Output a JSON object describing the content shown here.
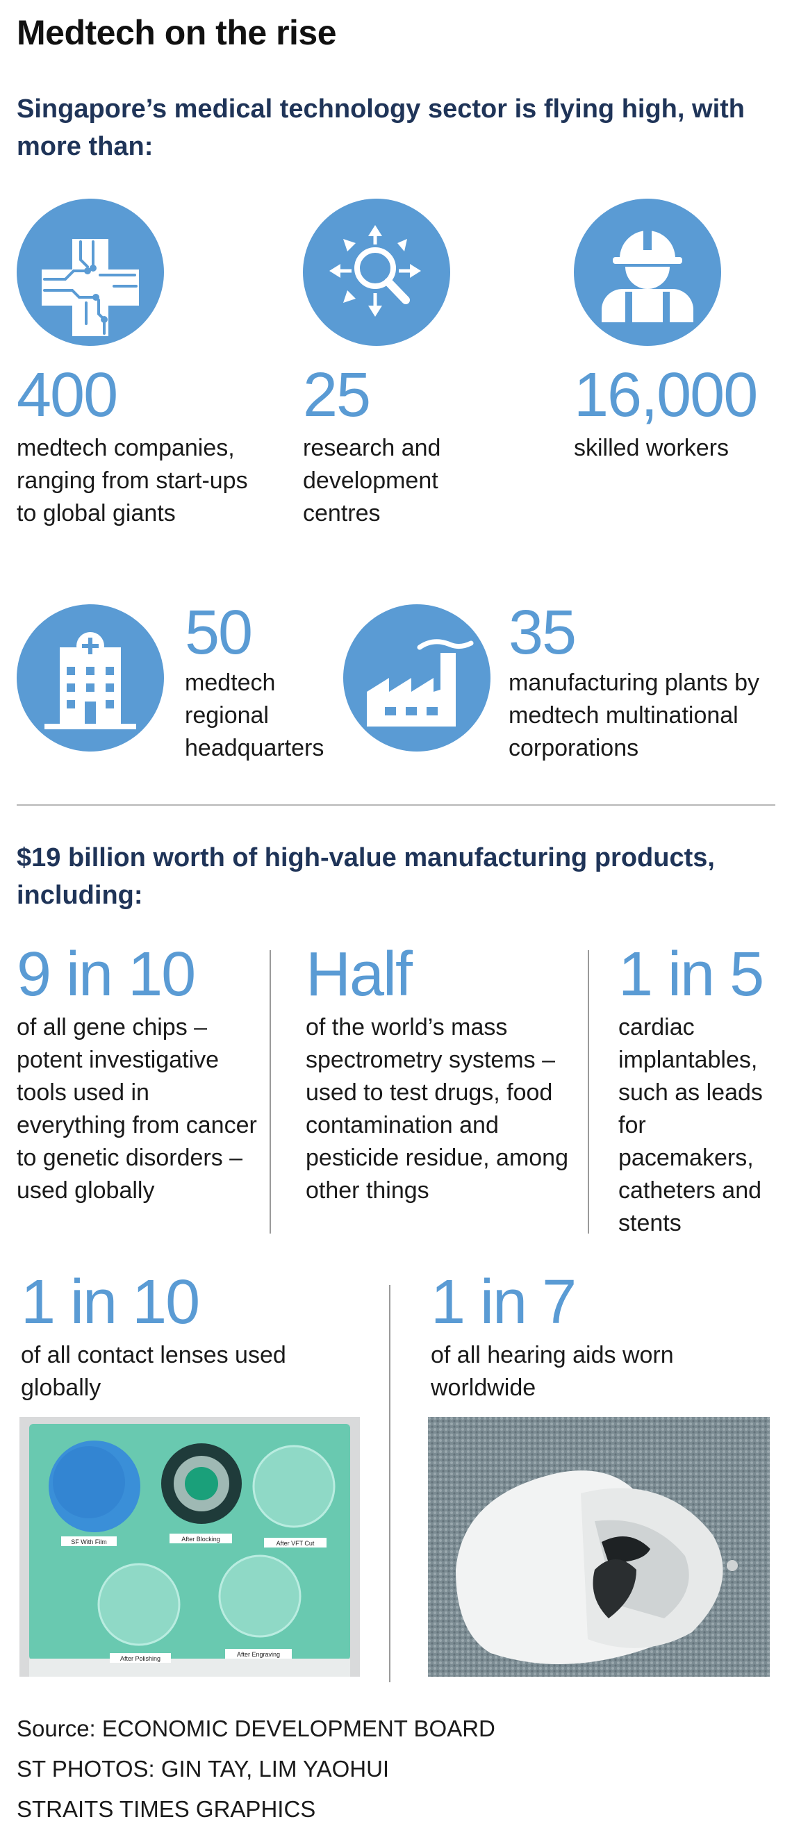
{
  "title": "Medtech on the rise",
  "intro": "Singapore’s medical technology sector is flying high, with more than:",
  "stats": [
    {
      "icon": "medical-cross-circuit-icon",
      "value": "400",
      "label": "medtech companies, ranging from start-ups to global giants"
    },
    {
      "icon": "research-magnifier-icon",
      "value": "25",
      "label": "research and development centres"
    },
    {
      "icon": "worker-hardhat-icon",
      "value": "16,000",
      "label": "skilled workers"
    },
    {
      "icon": "hospital-building-icon",
      "value": "50",
      "label": "medtech regional headquarters"
    },
    {
      "icon": "factory-icon",
      "value": "35",
      "label": "manufacturing plants by medtech multinational corporations"
    }
  ],
  "products_heading": "$19 billion worth of high-value manufacturing products, including:",
  "products": [
    {
      "value": "9 in 10",
      "label": "of all gene chips – potent investigative tools used in everything from cancer to genetic disorders – used globally"
    },
    {
      "value": "Half",
      "label": "of the world’s mass spectrometry systems – used to test drugs, food contamination and pesticide residue, among other things"
    },
    {
      "value": "1 in 5",
      "label": "cardiac implantables, such as leads for pacemakers, catheters and stents"
    },
    {
      "value": "1 in 10",
      "label": "of all contact lenses used globally"
    },
    {
      "value": "1 in 7",
      "label": "of all hearing aids worn worldwide"
    }
  ],
  "lens_photo_labels": [
    "SF With Film",
    "After Blocking",
    "After VFT Cut",
    "After Polishing",
    "After Engraving"
  ],
  "footer": {
    "source": "Source: ECONOMIC DEVELOPMENT BOARD",
    "photos": "ST PHOTOS: GIN TAY, LIM YAOHUI",
    "graphics": "STRAITS TIMES GRAPHICS"
  },
  "colors": {
    "accent": "#5a9bd4",
    "heading": "#1f3458",
    "text": "#1a1a1a"
  }
}
